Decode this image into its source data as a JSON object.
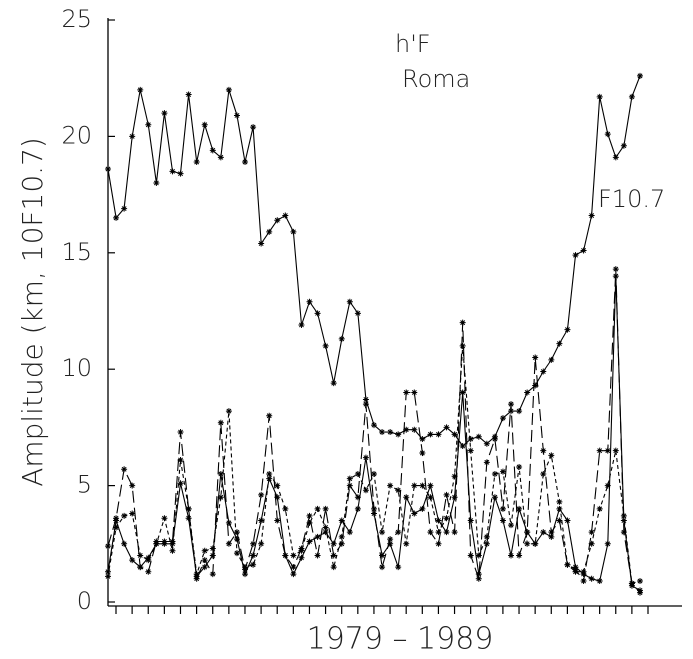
{
  "chart_data": {
    "type": "line",
    "ylabel": "Amplitude (km, 10F10.7)",
    "xlabel": "1979  –  1989",
    "annotations": [
      "h'F",
      "Roma"
    ],
    "categories": [
      null,
      null,
      null,
      null,
      null,
      null,
      null,
      null,
      null,
      null,
      null,
      null,
      null,
      null,
      null,
      null,
      null,
      null,
      null,
      null,
      null,
      null,
      null,
      null,
      null,
      null,
      null,
      null,
      null,
      null,
      null,
      null,
      null,
      null,
      null,
      null,
      null,
      null,
      null,
      null,
      null,
      null,
      null,
      null,
      null,
      null,
      null,
      null,
      null,
      null,
      null,
      null,
      null,
      null,
      null,
      null,
      null,
      null,
      null,
      null,
      null,
      null,
      null,
      null,
      null,
      null,
      null
    ],
    "ylim": [
      0,
      25
    ],
    "yticks": [
      0,
      5,
      10,
      15,
      20,
      25
    ],
    "series": [
      {
        "name": "F10.7",
        "color": "#000000",
        "dash": "solid",
        "values": [
          18.6,
          16.5,
          16.9,
          20,
          22,
          20.5,
          18,
          21,
          18.5,
          18.4,
          21.8,
          18.9,
          20.5,
          19.4,
          19.1,
          22,
          20.9,
          18.9,
          20.4,
          15.4,
          15.9,
          16.4,
          16.6,
          15.9,
          11.9,
          12.9,
          12.4,
          11,
          9.4,
          11.3,
          12.9,
          12.4,
          8.7,
          7.6,
          7.3,
          7.3,
          7.2,
          7.4,
          7.4,
          7.0,
          7.2,
          7.2,
          7.5,
          7.2,
          6.7,
          7.0,
          7.1,
          6.8,
          7.1,
          7.9,
          8.2,
          8.2,
          9.0,
          9.3,
          9.9,
          10.4,
          11.1,
          11.7,
          14.9,
          15.1,
          16.6,
          21.7,
          20.1,
          19.1,
          19.6,
          21.7,
          22.6
        ]
      },
      {
        "color": "#000000",
        "dash": "solid",
        "values": [
          1.3,
          3.5,
          2.5,
          1.8,
          1.5,
          1.9,
          2.5,
          2.5,
          2.5,
          5.1,
          3.6,
          1.1,
          1.5,
          2.0,
          5.5,
          3.4,
          2.7,
          1.2,
          2.0,
          3.5,
          5.3,
          4.5,
          2.0,
          1.2,
          1.9,
          2.6,
          2.8,
          3.0,
          2.5,
          3.5,
          3.0,
          4.0,
          6.2,
          3.8,
          2.0,
          2.5,
          1.5,
          4.5,
          3.8,
          4.0,
          5.0,
          3.5,
          3.0,
          4.5,
          9.0,
          3.5,
          1.2,
          2.5,
          4.5,
          3.5,
          2.0,
          4.0,
          3.0,
          2.5,
          3.0,
          2.8,
          4.0,
          3.5,
          1.5,
          1.2,
          1.0,
          0.9,
          2.5,
          14.0,
          3.5,
          0.7,
          0.5
        ]
      },
      {
        "color": "#000000",
        "dash": "long",
        "values": [
          2.4,
          3.6,
          5.7,
          5.0,
          1.5,
          1.3,
          2.6,
          2.6,
          2.6,
          7.3,
          4.0,
          1.0,
          1.8,
          1.2,
          7.7,
          2.5,
          3.0,
          1.4,
          2.5,
          4.6,
          8.0,
          3.5,
          2.0,
          1.5,
          2.3,
          3.7,
          2.0,
          4.0,
          2.0,
          2.5,
          5.0,
          4.5,
          8.5,
          4.0,
          1.5,
          2.7,
          3.0,
          9.0,
          9.0,
          6.4,
          3.0,
          2.5,
          4.6,
          3.0,
          12.0,
          2.0,
          1.0,
          6.0,
          7.0,
          4.0,
          8.5,
          2.0,
          3.0,
          10.5,
          6.5,
          3.0,
          3.5,
          1.6,
          1.4,
          0.9,
          3.0,
          6.5,
          6.5,
          14.3,
          3.0,
          0.8,
          0.4
        ]
      },
      {
        "color": "#000000",
        "dash": "short",
        "values": [
          1.1,
          3.2,
          3.7,
          3.8,
          2.0,
          1.8,
          2.5,
          3.6,
          2.2,
          6.1,
          4.0,
          1.2,
          2.2,
          2.3,
          4.5,
          8.2,
          2.1,
          1.5,
          1.6,
          2.5,
          5.5,
          5.0,
          4.0,
          2.0,
          2.2,
          3.4,
          4.0,
          3.2,
          1.5,
          2.8,
          5.3,
          5.5,
          4.8,
          5.5,
          3.0,
          5.0,
          4.8,
          2.5,
          5.0,
          5.0,
          4.5,
          3.0,
          3.6,
          5.4,
          11.0,
          6.5,
          2.0,
          2.8,
          5.5,
          5.6,
          3.3,
          5.8,
          2.5,
          2.5,
          5.5,
          6.3,
          4.3,
          1.6,
          1.3,
          1.3,
          2.5,
          4.0,
          5.0,
          6.5,
          3.7,
          0.8,
          0.9
        ]
      }
    ]
  }
}
